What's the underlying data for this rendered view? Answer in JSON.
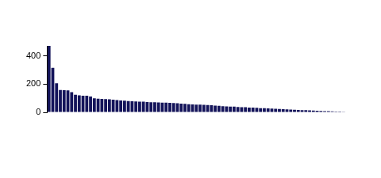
{
  "chart_data": {
    "type": "bar",
    "categories": [
      null,
      null,
      null,
      null,
      null,
      null,
      null,
      null,
      null,
      null,
      null,
      null,
      null,
      null,
      null,
      null,
      null,
      null,
      null,
      null,
      null,
      null,
      null,
      null,
      null,
      null,
      null,
      null,
      null,
      null,
      null,
      null,
      null,
      null,
      null,
      null,
      null,
      null,
      null,
      null,
      null,
      null,
      null,
      null,
      null,
      null,
      null,
      null,
      null,
      null,
      null,
      null,
      null,
      null,
      null,
      null,
      null,
      null,
      null,
      null,
      null,
      null,
      null,
      null,
      null,
      null,
      null,
      null,
      null,
      null,
      null,
      null,
      null,
      null,
      null,
      null,
      null,
      null,
      null,
      null
    ],
    "values": [
      470,
      315,
      205,
      158,
      157,
      155,
      143,
      125,
      120,
      118,
      117,
      112,
      100,
      96,
      95,
      94,
      92,
      90,
      87,
      84,
      82,
      80,
      79,
      77,
      76,
      75,
      73,
      72,
      71,
      70,
      69,
      68,
      67,
      66,
      64,
      62,
      60,
      58,
      56,
      55,
      54,
      53,
      52,
      50,
      48,
      46,
      44,
      42,
      41,
      40,
      38,
      37,
      36,
      34,
      33,
      32,
      30,
      29,
      28,
      26,
      25,
      24,
      22,
      21,
      20,
      18,
      17,
      16,
      15,
      14,
      12,
      11,
      10,
      9,
      8,
      7,
      6,
      5,
      4,
      3
    ],
    "color": "#14145a",
    "ylim": [
      0,
      470
    ],
    "yticks": [
      0,
      200,
      400
    ],
    "grid": false,
    "tick_labels": "y"
  }
}
